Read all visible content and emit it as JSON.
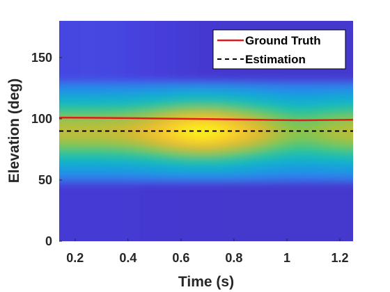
{
  "chart_data": {
    "type": "heatmap",
    "xlabel": "Time (s)",
    "ylabel": "Elevation (deg)",
    "xlim": [
      0.14,
      1.25
    ],
    "ylim": [
      0,
      180
    ],
    "xticks": [
      0.2,
      0.4,
      0.6,
      0.8,
      1,
      1.2
    ],
    "xtick_labels": [
      "0.2",
      "0.4",
      "0.6",
      "0.8",
      "1",
      "1.2"
    ],
    "yticks": [
      0,
      50,
      100,
      150
    ],
    "ytick_labels": [
      "0",
      "50",
      "100",
      "150"
    ],
    "grid": false,
    "legend_position": "top-right",
    "colormap": "parula",
    "heatmap_profile": {
      "peak_elevation": 90,
      "peak_time": 0.68,
      "band_low_edge": 48,
      "band_high_edge": 132
    },
    "series": [
      {
        "name": "Ground Truth",
        "color": "#e31a1c",
        "style": "solid",
        "x": [
          0.14,
          0.4,
          0.7,
          0.9,
          1.05,
          1.25
        ],
        "y": [
          101,
          100.6,
          99.8,
          99.2,
          98.8,
          99.2
        ]
      },
      {
        "name": "Estimation",
        "color": "#000000",
        "style": "dashed",
        "x": [
          0.14,
          1.25
        ],
        "y": [
          90,
          90
        ]
      }
    ]
  }
}
